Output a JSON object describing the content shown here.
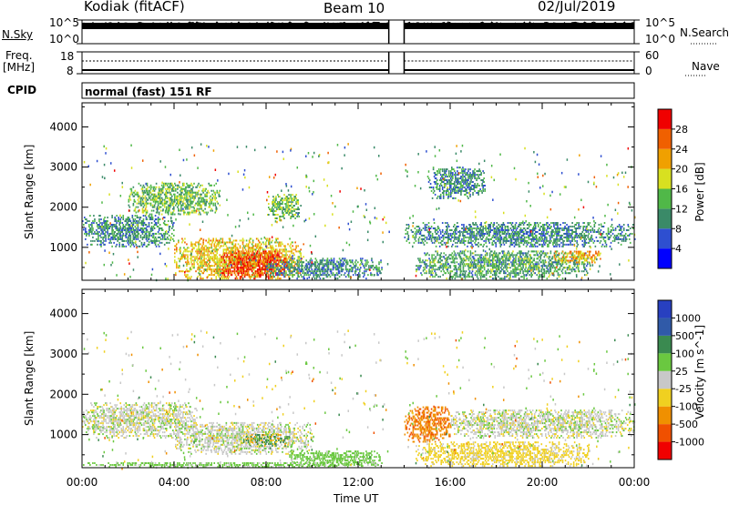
{
  "header": {
    "station": "Kodiak (fitACF)",
    "beam": "Beam 10",
    "date": "02/Jul/2019"
  },
  "side_labels": {
    "nsky": "N.Sky",
    "nsearch": "N.Search",
    "freq_line1": "Freq.",
    "freq_line2": "[MHz]",
    "nave": "Nave",
    "cpid": "CPID"
  },
  "noise_axis": {
    "top": "10^5",
    "bottom": "10^0"
  },
  "freq_axis": {
    "left_top": "18",
    "left_bottom": "8",
    "right_top": "60",
    "right_bottom": "0"
  },
  "cpid_text": "normal (fast) 151 RF",
  "xaxis": {
    "label": "Time UT",
    "ticks": [
      "00:00",
      "04:00",
      "08:00",
      "12:00",
      "16:00",
      "20:00",
      "00:00"
    ]
  },
  "power_scale": {
    "label": "Power [dB]",
    "ticks": [
      "28",
      "24",
      "20",
      "16",
      "12",
      "8",
      "4"
    ],
    "colors": [
      "#0000ff",
      "#2e4fd0",
      "#3a8a68",
      "#50b848",
      "#d8e020",
      "#f0a000",
      "#f06000",
      "#f00000"
    ]
  },
  "velocity_scale": {
    "label": "Velocity [m s^-1]",
    "ticks": [
      "1000",
      "500",
      "100",
      "25",
      "-25",
      "-100",
      "-500",
      "-1000"
    ],
    "colors": [
      "#2840c0",
      "#305aa8",
      "#3a8a50",
      "#6ac840",
      "#c8c8c8",
      "#f0d020",
      "#f09000",
      "#f05000",
      "#f00000"
    ]
  },
  "chart_data": [
    {
      "type": "heatmap",
      "title": "",
      "xlabel": "",
      "ylabel": "Slant Range [km]",
      "xlim": [
        "00:00",
        "24:00"
      ],
      "ylim": [
        180,
        4600
      ],
      "yticks": [
        1000,
        2000,
        3000,
        4000
      ],
      "colorbar": "Power [dB]",
      "data_gap": [
        "13:20",
        "14:00"
      ],
      "regions": [
        {
          "t": [
            0.0,
            4.0
          ],
          "range": [
            1000,
            1800
          ],
          "value_db": 10
        },
        {
          "t": [
            2.0,
            6.0
          ],
          "range": [
            1800,
            2600
          ],
          "value_db": 14
        },
        {
          "t": [
            4.0,
            9.6
          ],
          "range": [
            200,
            1200
          ],
          "value_db": 20
        },
        {
          "t": [
            6.0,
            8.9
          ],
          "range": [
            200,
            900
          ],
          "value_db": 28
        },
        {
          "t": [
            8.0,
            13.0
          ],
          "range": [
            200,
            700
          ],
          "value_db": 10
        },
        {
          "t": [
            8.0,
            9.5
          ],
          "range": [
            1700,
            2300
          ],
          "value_db": 14
        },
        {
          "t": [
            14.0,
            24.0
          ],
          "range": [
            1000,
            1600
          ],
          "value_db": 10
        },
        {
          "t": [
            14.5,
            22.0
          ],
          "range": [
            200,
            900
          ],
          "value_db": 12
        },
        {
          "t": [
            20.5,
            22.5
          ],
          "range": [
            600,
            900
          ],
          "value_db": 22
        },
        {
          "t": [
            15.0,
            17.5
          ],
          "range": [
            2200,
            3000
          ],
          "value_db": 10
        }
      ]
    },
    {
      "type": "heatmap",
      "title": "",
      "xlabel": "Time UT",
      "ylabel": "Slant Range [km]",
      "xlim": [
        "00:00",
        "24:00"
      ],
      "ylim": [
        180,
        4600
      ],
      "yticks": [
        1000,
        2000,
        3000,
        4000
      ],
      "colorbar": "Velocity [m s^-1]",
      "data_gap": [
        "13:20",
        "14:00"
      ],
      "regions": [
        {
          "t": [
            0.0,
            5.0
          ],
          "range": [
            900,
            1800
          ],
          "value_ms": 0
        },
        {
          "t": [
            4.0,
            10.0
          ],
          "range": [
            500,
            1300
          ],
          "value_ms": 0
        },
        {
          "t": [
            7.0,
            9.0
          ],
          "range": [
            700,
            1000
          ],
          "value_ms": 120
        },
        {
          "t": [
            9.0,
            13.0
          ],
          "range": [
            200,
            600
          ],
          "value_ms": 60
        },
        {
          "t": [
            14.0,
            16.0
          ],
          "range": [
            800,
            1700
          ],
          "value_ms": -400
        },
        {
          "t": [
            16.0,
            24.0
          ],
          "range": [
            900,
            1600
          ],
          "value_ms": 0
        },
        {
          "t": [
            14.5,
            22.0
          ],
          "range": [
            200,
            800
          ],
          "value_ms": -50
        },
        {
          "t": [
            0.0,
            13.0
          ],
          "range": [
            180,
            300
          ],
          "value_ms": 50
        }
      ]
    }
  ]
}
